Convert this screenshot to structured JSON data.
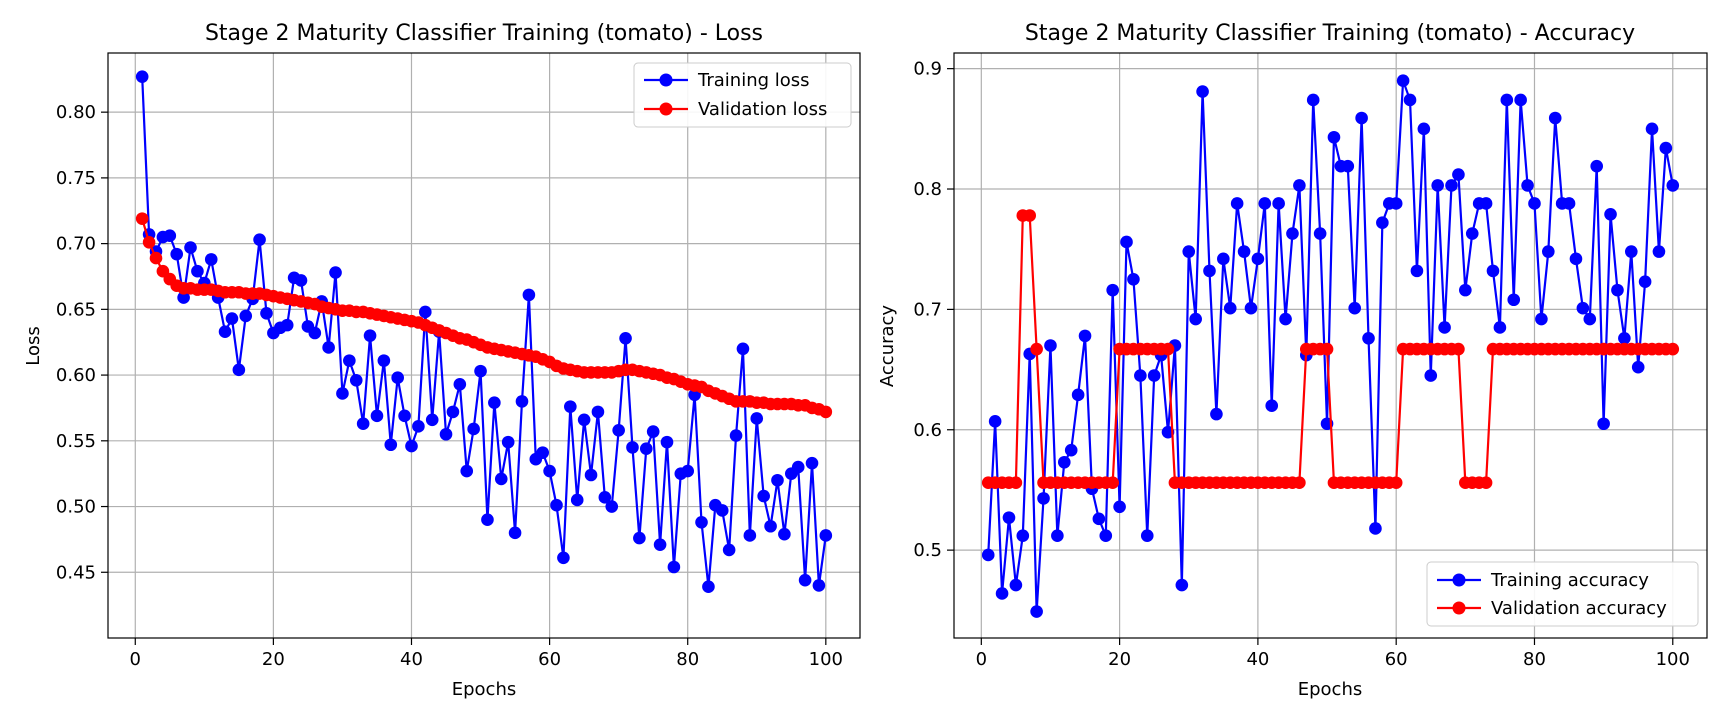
{
  "chart_data": [
    {
      "type": "line",
      "title": "Stage 2 Maturity Classifier Training (tomato) - Loss",
      "xlabel": "Epochs",
      "ylabel": "Loss",
      "xlim": [
        -3.95,
        104.95
      ],
      "ylim": [
        0.4,
        0.845
      ],
      "xticks": [
        0,
        20,
        40,
        60,
        80,
        100
      ],
      "yticks": [
        0.45,
        0.5,
        0.55,
        0.6,
        0.65,
        0.7,
        0.75,
        0.8
      ],
      "ytick_labels": [
        "0.45",
        "0.50",
        "0.55",
        "0.60",
        "0.65",
        "0.70",
        "0.75",
        "0.80"
      ],
      "grid": true,
      "legend_position": "top-right",
      "x": [
        1,
        2,
        3,
        4,
        5,
        6,
        7,
        8,
        9,
        10,
        11,
        12,
        13,
        14,
        15,
        16,
        17,
        18,
        19,
        20,
        21,
        22,
        23,
        24,
        25,
        26,
        27,
        28,
        29,
        30,
        31,
        32,
        33,
        34,
        35,
        36,
        37,
        38,
        39,
        40,
        41,
        42,
        43,
        44,
        45,
        46,
        47,
        48,
        49,
        50,
        51,
        52,
        53,
        54,
        55,
        56,
        57,
        58,
        59,
        60,
        61,
        62,
        63,
        64,
        65,
        66,
        67,
        68,
        69,
        70,
        71,
        72,
        73,
        74,
        75,
        76,
        77,
        78,
        79,
        80,
        81,
        82,
        83,
        84,
        85,
        86,
        87,
        88,
        89,
        90,
        91,
        92,
        93,
        94,
        95,
        96,
        97,
        98,
        99,
        100
      ],
      "series": [
        {
          "name": "Training loss",
          "color": "#0000ff",
          "values": [
            0.827,
            0.707,
            0.694,
            0.705,
            0.706,
            0.692,
            0.659,
            0.697,
            0.679,
            0.67,
            0.688,
            0.659,
            0.633,
            0.643,
            0.604,
            0.645,
            0.658,
            0.703,
            0.647,
            0.632,
            0.636,
            0.638,
            0.674,
            0.672,
            0.637,
            0.632,
            0.656,
            0.621,
            0.678,
            0.586,
            0.611,
            0.596,
            0.563,
            0.63,
            0.569,
            0.611,
            0.547,
            0.598,
            0.569,
            0.546,
            0.561,
            0.648,
            0.566,
            0.633,
            0.555,
            0.572,
            0.593,
            0.527,
            0.559,
            0.603,
            0.49,
            0.579,
            0.521,
            0.549,
            0.48,
            0.58,
            0.661,
            0.536,
            0.541,
            0.527,
            0.501,
            0.461,
            0.576,
            0.505,
            0.566,
            0.524,
            0.572,
            0.507,
            0.5,
            0.558,
            0.628,
            0.545,
            0.476,
            0.544,
            0.557,
            0.471,
            0.549,
            0.454,
            0.525,
            0.527,
            0.585,
            0.488,
            0.439,
            0.501,
            0.497,
            0.467,
            0.554,
            0.62,
            0.478,
            0.567,
            0.508,
            0.485,
            0.52,
            0.479,
            0.525,
            0.53,
            0.444,
            0.533,
            0.44,
            0.478
          ]
        },
        {
          "name": "Validation loss",
          "color": "#ff0000",
          "values": [
            0.719,
            0.701,
            0.689,
            0.679,
            0.673,
            0.668,
            0.666,
            0.666,
            0.665,
            0.665,
            0.665,
            0.664,
            0.663,
            0.663,
            0.663,
            0.662,
            0.662,
            0.662,
            0.661,
            0.66,
            0.659,
            0.658,
            0.657,
            0.656,
            0.655,
            0.654,
            0.652,
            0.651,
            0.65,
            0.649,
            0.649,
            0.648,
            0.648,
            0.647,
            0.646,
            0.645,
            0.644,
            0.643,
            0.642,
            0.641,
            0.64,
            0.638,
            0.636,
            0.634,
            0.632,
            0.63,
            0.628,
            0.627,
            0.625,
            0.623,
            0.621,
            0.62,
            0.619,
            0.618,
            0.617,
            0.616,
            0.615,
            0.614,
            0.612,
            0.61,
            0.607,
            0.605,
            0.604,
            0.603,
            0.602,
            0.602,
            0.602,
            0.602,
            0.602,
            0.603,
            0.604,
            0.604,
            0.603,
            0.602,
            0.601,
            0.6,
            0.598,
            0.597,
            0.595,
            0.593,
            0.592,
            0.591,
            0.588,
            0.586,
            0.584,
            0.582,
            0.58,
            0.58,
            0.58,
            0.579,
            0.579,
            0.578,
            0.578,
            0.578,
            0.578,
            0.577,
            0.577,
            0.575,
            0.574,
            0.572
          ]
        }
      ]
    },
    {
      "type": "line",
      "title": "Stage 2 Maturity Classifier Training (tomato) - Accuracy",
      "xlabel": "Epochs",
      "ylabel": "Accuracy",
      "xlim": [
        -3.95,
        104.95
      ],
      "ylim": [
        0.427,
        0.913
      ],
      "xticks": [
        0,
        20,
        40,
        60,
        80,
        100
      ],
      "yticks": [
        0.5,
        0.6,
        0.7,
        0.8,
        0.9
      ],
      "ytick_labels": [
        "0.5",
        "0.6",
        "0.7",
        "0.8",
        "0.9"
      ],
      "grid": true,
      "legend_position": "bottom-right",
      "x": [
        1,
        2,
        3,
        4,
        5,
        6,
        7,
        8,
        9,
        10,
        11,
        12,
        13,
        14,
        15,
        16,
        17,
        18,
        19,
        20,
        21,
        22,
        23,
        24,
        25,
        26,
        27,
        28,
        29,
        30,
        31,
        32,
        33,
        34,
        35,
        36,
        37,
        38,
        39,
        40,
        41,
        42,
        43,
        44,
        45,
        46,
        47,
        48,
        49,
        50,
        51,
        52,
        53,
        54,
        55,
        56,
        57,
        58,
        59,
        60,
        61,
        62,
        63,
        64,
        65,
        66,
        67,
        68,
        69,
        70,
        71,
        72,
        73,
        74,
        75,
        76,
        77,
        78,
        79,
        80,
        81,
        82,
        83,
        84,
        85,
        86,
        87,
        88,
        89,
        90,
        91,
        92,
        93,
        94,
        95,
        96,
        97,
        98,
        99,
        100
      ],
      "series": [
        {
          "name": "Training accuracy",
          "color": "#0000ff",
          "values": [
            0.496,
            0.607,
            0.464,
            0.527,
            0.471,
            0.512,
            0.663,
            0.449,
            0.543,
            0.67,
            0.512,
            0.573,
            0.583,
            0.629,
            0.678,
            0.551,
            0.526,
            0.512,
            0.716,
            0.536,
            0.756,
            0.725,
            0.645,
            0.512,
            0.645,
            0.662,
            0.598,
            0.67,
            0.471,
            0.748,
            0.692,
            0.881,
            0.732,
            0.613,
            0.742,
            0.701,
            0.788,
            0.748,
            0.701,
            0.742,
            0.788,
            0.62,
            0.788,
            0.692,
            0.763,
            0.803,
            0.662,
            0.874,
            0.763,
            0.605,
            0.843,
            0.819,
            0.819,
            0.701,
            0.859,
            0.676,
            0.518,
            0.772,
            0.788,
            0.788,
            0.89,
            0.874,
            0.732,
            0.85,
            0.645,
            0.803,
            0.685,
            0.803,
            0.812,
            0.716,
            0.763,
            0.788,
            0.788,
            0.732,
            0.685,
            0.874,
            0.708,
            0.874,
            0.803,
            0.788,
            0.692,
            0.748,
            0.859,
            0.788,
            0.788,
            0.742,
            0.701,
            0.692,
            0.819,
            0.605,
            0.779,
            0.716,
            0.676,
            0.748,
            0.652,
            0.723,
            0.85,
            0.748,
            0.834,
            0.803
          ]
        },
        {
          "name": "Validation accuracy",
          "color": "#ff0000",
          "values": [
            0.556,
            0.556,
            0.556,
            0.556,
            0.556,
            0.778,
            0.778,
            0.667,
            0.556,
            0.556,
            0.556,
            0.556,
            0.556,
            0.556,
            0.556,
            0.556,
            0.556,
            0.556,
            0.556,
            0.667,
            0.667,
            0.667,
            0.667,
            0.667,
            0.667,
            0.667,
            0.667,
            0.556,
            0.556,
            0.556,
            0.556,
            0.556,
            0.556,
            0.556,
            0.556,
            0.556,
            0.556,
            0.556,
            0.556,
            0.556,
            0.556,
            0.556,
            0.556,
            0.556,
            0.556,
            0.556,
            0.667,
            0.667,
            0.667,
            0.667,
            0.556,
            0.556,
            0.556,
            0.556,
            0.556,
            0.556,
            0.556,
            0.556,
            0.556,
            0.556,
            0.667,
            0.667,
            0.667,
            0.667,
            0.667,
            0.667,
            0.667,
            0.667,
            0.667,
            0.556,
            0.556,
            0.556,
            0.556,
            0.667,
            0.667,
            0.667,
            0.667,
            0.667,
            0.667,
            0.667,
            0.667,
            0.667,
            0.667,
            0.667,
            0.667,
            0.667,
            0.667,
            0.667,
            0.667,
            0.667,
            0.667,
            0.667,
            0.667,
            0.667,
            0.667,
            0.667,
            0.667,
            0.667,
            0.667,
            0.667
          ]
        }
      ]
    }
  ]
}
